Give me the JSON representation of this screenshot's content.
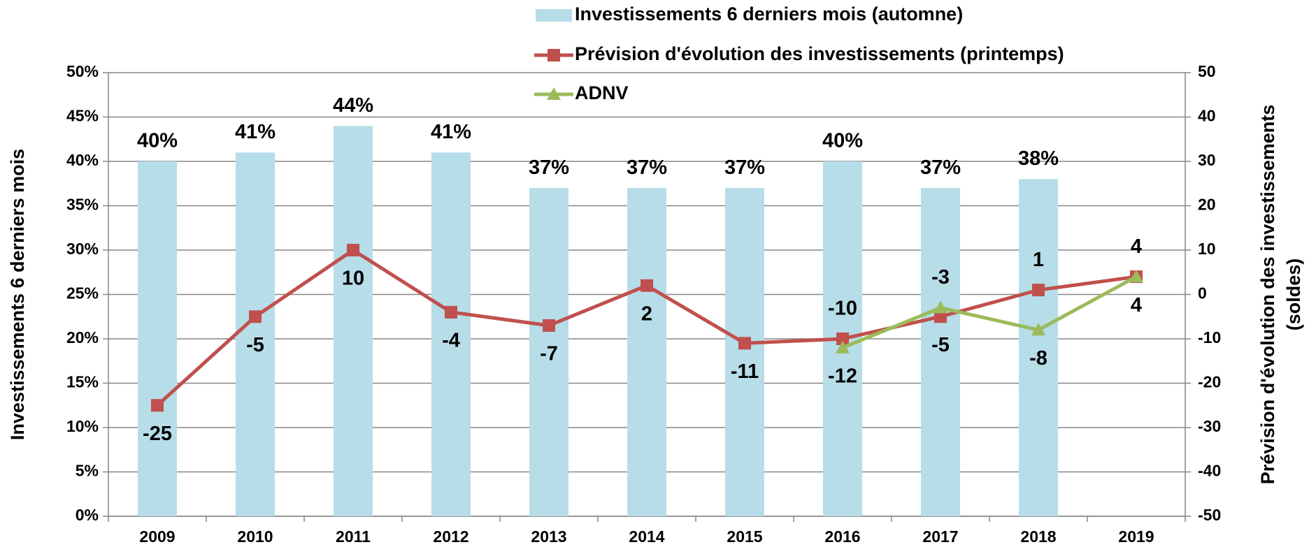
{
  "chart_data": {
    "type": "bar",
    "categories": [
      "2009",
      "2010",
      "2011",
      "2012",
      "2013",
      "2014",
      "2015",
      "2016",
      "2017",
      "2018",
      "2019"
    ],
    "ylabel": "Investissements 6 derniers mois",
    "y2label": [
      "Prévision d'évolution des investissements",
      "(soldes)"
    ],
    "ylim": [
      0,
      50
    ],
    "yticks": [
      {
        "value": 0,
        "label": "0%"
      },
      {
        "value": 5,
        "label": "5%"
      },
      {
        "value": 10,
        "label": "10%"
      },
      {
        "value": 15,
        "label": "15%"
      },
      {
        "value": 20,
        "label": "20%"
      },
      {
        "value": 25,
        "label": "25%"
      },
      {
        "value": 30,
        "label": "30%"
      },
      {
        "value": 35,
        "label": "35%"
      },
      {
        "value": 40,
        "label": "40%"
      },
      {
        "value": 45,
        "label": "45%"
      },
      {
        "value": 50,
        "label": "50%"
      }
    ],
    "y2lim": [
      -50,
      50
    ],
    "y2ticks": [
      -50,
      -40,
      -30,
      -20,
      -10,
      0,
      10,
      20,
      30,
      40,
      50
    ],
    "grid": true,
    "series": [
      {
        "name": "Investissements 6 derniers mois (automne)",
        "type": "bar",
        "color": "#b7dde8",
        "values": [
          40,
          41,
          44,
          41,
          37,
          37,
          37,
          40,
          37,
          38,
          null
        ],
        "value_labels": [
          "40%",
          "41%",
          "44%",
          "41%",
          "37%",
          "37%",
          "37%",
          "40%",
          "37%",
          "38%",
          null
        ]
      },
      {
        "name": "Prévision d'évolution des investissements (printemps)",
        "type": "line",
        "axis": "y2",
        "color": "#c0504d",
        "marker": "square",
        "values": [
          -25,
          -5,
          10,
          -4,
          -7,
          2,
          -11,
          -10,
          -5,
          1,
          4
        ]
      },
      {
        "name": "ADNV",
        "type": "line",
        "axis": "y2",
        "color": "#9bbb59",
        "marker": "triangle",
        "values": [
          null,
          null,
          null,
          null,
          null,
          null,
          null,
          -12,
          -3,
          -8,
          4
        ]
      }
    ]
  }
}
